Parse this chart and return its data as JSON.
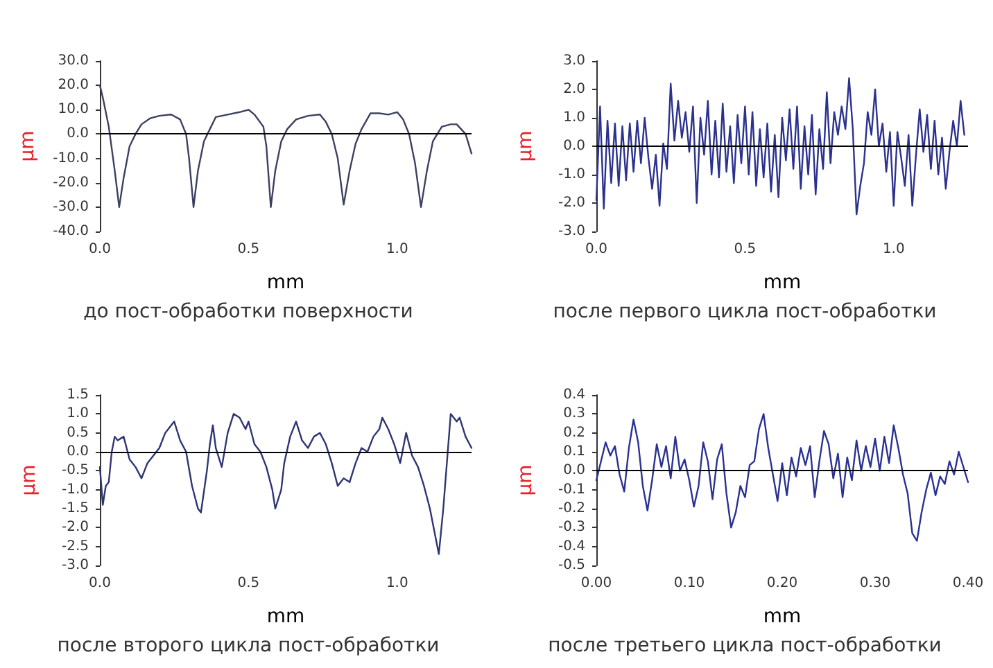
{
  "chart_data": [
    {
      "type": "line",
      "title": "до пост-обработки поверхности",
      "xlabel": "mm",
      "ylabel": "µm",
      "grid": false,
      "marker": "none",
      "line_style": "solid",
      "xlim": [
        0,
        1.25
      ],
      "xticks": [
        {
          "value": 0,
          "label": "0.0"
        },
        {
          "value": 0.5,
          "label": "0.5"
        },
        {
          "value": 1,
          "label": "1.0"
        }
      ],
      "ylim": [
        -40,
        30
      ],
      "yticks": [
        {
          "value": -40,
          "label": "-40.0"
        },
        {
          "value": -30,
          "label": "-30.0"
        },
        {
          "value": -20,
          "label": "-20.0"
        },
        {
          "value": -10,
          "label": "-10.0"
        },
        {
          "value": 0,
          "label": "0.0"
        },
        {
          "value": 10,
          "label": "10.0"
        },
        {
          "value": 20,
          "label": "20.0"
        },
        {
          "value": 30,
          "label": "30.0"
        }
      ],
      "ref_lines": [
        {
          "axis": "y",
          "value": 0,
          "color": "#000000"
        }
      ],
      "series": [
        {
          "color": "#3c4060",
          "x": [
            0,
            0.01,
            0.03,
            0.05,
            0.065,
            0.08,
            0.1,
            0.12,
            0.14,
            0.17,
            0.2,
            0.24,
            0.27,
            0.29,
            0.3,
            0.315,
            0.33,
            0.35,
            0.37,
            0.39,
            0.43,
            0.47,
            0.5,
            0.52,
            0.55,
            0.56,
            0.575,
            0.59,
            0.61,
            0.63,
            0.66,
            0.7,
            0.74,
            0.76,
            0.78,
            0.8,
            0.82,
            0.84,
            0.86,
            0.88,
            0.91,
            0.94,
            0.97,
            1.0,
            1.02,
            1.04,
            1.06,
            1.08,
            1.1,
            1.12,
            1.15,
            1.18,
            1.2,
            1.23,
            1.25
          ],
          "values": [
            20,
            15,
            3,
            -15,
            -30,
            -18,
            -5,
            0,
            4,
            6.5,
            7.5,
            8,
            6,
            0,
            -10,
            -30,
            -15,
            -3,
            2,
            7,
            8,
            9,
            10,
            8,
            3,
            -5,
            -30,
            -15,
            -3,
            2,
            6,
            7.5,
            8,
            5,
            0,
            -10,
            -29,
            -15,
            -4,
            2,
            8.5,
            8.5,
            8,
            9,
            6,
            0,
            -12,
            -30,
            -15,
            -3,
            3,
            4,
            4,
            0,
            -8
          ]
        }
      ]
    },
    {
      "type": "line",
      "title": "после первого цикла пост-обработки",
      "xlabel": "mm",
      "ylabel": "µm",
      "grid": false,
      "marker": "none",
      "line_style": "solid",
      "xlim": [
        0,
        1.25
      ],
      "xticks": [
        {
          "value": 0,
          "label": "0.0"
        },
        {
          "value": 0.5,
          "label": "0.5"
        },
        {
          "value": 1,
          "label": "1.0"
        }
      ],
      "ylim": [
        -3,
        3
      ],
      "yticks": [
        {
          "value": -3,
          "label": "-3.0"
        },
        {
          "value": -2,
          "label": "-2.0"
        },
        {
          "value": -1,
          "label": "-1.0"
        },
        {
          "value": 0,
          "label": "0.0"
        },
        {
          "value": 1,
          "label": "1.0"
        },
        {
          "value": 2,
          "label": "2.0"
        },
        {
          "value": 3,
          "label": "3.0"
        }
      ],
      "ref_lines": [
        {
          "axis": "y",
          "value": 0,
          "color": "#000000"
        }
      ],
      "series": [
        {
          "color": "#2b318f",
          "x": [
            0,
            0.0125,
            0.025,
            0.0375,
            0.05,
            0.0625,
            0.075,
            0.0875,
            0.1,
            0.1125,
            0.125,
            0.1375,
            0.15,
            0.1625,
            0.175,
            0.1875,
            0.2,
            0.2125,
            0.225,
            0.2375,
            0.25,
            0.2625,
            0.275,
            0.2875,
            0.3,
            0.3125,
            0.325,
            0.3375,
            0.35,
            0.3625,
            0.375,
            0.3875,
            0.4,
            0.4125,
            0.425,
            0.4375,
            0.45,
            0.4625,
            0.475,
            0.4875,
            0.5,
            0.5125,
            0.525,
            0.5375,
            0.55,
            0.5625,
            0.575,
            0.5875,
            0.6,
            0.6125,
            0.625,
            0.6375,
            0.65,
            0.6625,
            0.675,
            0.6875,
            0.7,
            0.7125,
            0.725,
            0.7375,
            0.75,
            0.7625,
            0.775,
            0.7875,
            0.8,
            0.8125,
            0.825,
            0.8375,
            0.85,
            0.8625,
            0.875,
            0.8875,
            0.9,
            0.9125,
            0.925,
            0.9375,
            0.95,
            0.9625,
            0.975,
            0.9875,
            1.0,
            1.0125,
            1.025,
            1.0375,
            1.05,
            1.0625,
            1.075,
            1.0875,
            1.1,
            1.1125,
            1.125,
            1.1375,
            1.15,
            1.1625,
            1.175,
            1.1875,
            1.2,
            1.2125,
            1.225,
            1.2375
          ],
          "values": [
            -1.9,
            1.4,
            -2.2,
            0.9,
            -1.3,
            0.8,
            -1.4,
            0.7,
            -1.2,
            0.8,
            -0.9,
            0.9,
            -0.6,
            1.0,
            -0.4,
            -1.5,
            -0.3,
            -2.1,
            0.1,
            -0.8,
            2.2,
            0.2,
            1.6,
            0.3,
            1.2,
            -0.2,
            1.4,
            -2.0,
            1.0,
            -0.3,
            1.6,
            -1.0,
            0.9,
            -1.1,
            1.5,
            -0.9,
            0.7,
            -1.3,
            1.1,
            -0.6,
            1.4,
            -1.0,
            1.2,
            -1.4,
            0.6,
            -1.1,
            0.8,
            -1.6,
            0.4,
            -1.8,
            1.0,
            -0.5,
            1.3,
            -0.8,
            1.4,
            -1.5,
            0.7,
            -1.0,
            1.1,
            -1.7,
            0.6,
            -0.8,
            1.9,
            -0.6,
            1.2,
            0.4,
            1.4,
            0.6,
            2.4,
            0.6,
            -2.4,
            -1.4,
            -0.6,
            1.2,
            0.4,
            2.0,
            0.0,
            0.8,
            -0.9,
            0.5,
            -2.1,
            0.5,
            -0.4,
            -1.4,
            0.4,
            -2.1,
            -0.3,
            1.3,
            -0.2,
            1.1,
            -0.8,
            0.9,
            -1.0,
            0.3,
            -1.5,
            -0.2,
            0.9,
            0.0,
            1.6,
            0.4
          ]
        }
      ]
    },
    {
      "type": "line",
      "title": "после второго цикла пост-обработки",
      "xlabel": "mm",
      "ylabel": "µm",
      "grid": false,
      "marker": "none",
      "line_style": "solid",
      "xlim": [
        0,
        1.25
      ],
      "xticks": [
        {
          "value": 0,
          "label": "0.0"
        },
        {
          "value": 0.5,
          "label": "0.5"
        },
        {
          "value": 1,
          "label": "1.0"
        }
      ],
      "ylim": [
        -3,
        1.5
      ],
      "yticks": [
        {
          "value": -3,
          "label": "-3.0"
        },
        {
          "value": -2.5,
          "label": "-2.5"
        },
        {
          "value": -2,
          "label": "-2.0"
        },
        {
          "value": -1.5,
          "label": "-1.5"
        },
        {
          "value": -1,
          "label": "-1.0"
        },
        {
          "value": -0.5,
          "label": "-0.5"
        },
        {
          "value": 0,
          "label": "0.0"
        },
        {
          "value": 0.5,
          "label": "0.5"
        },
        {
          "value": 1,
          "label": "1.0"
        },
        {
          "value": 1.5,
          "label": "1.5"
        }
      ],
      "ref_lines": [
        {
          "axis": "y",
          "value": 0,
          "color": "#000000"
        }
      ],
      "series": [
        {
          "color": "#2e3572",
          "x": [
            0,
            0.01,
            0.02,
            0.03,
            0.04,
            0.05,
            0.06,
            0.08,
            0.09,
            0.1,
            0.12,
            0.14,
            0.16,
            0.18,
            0.2,
            0.22,
            0.25,
            0.27,
            0.29,
            0.31,
            0.33,
            0.34,
            0.36,
            0.37,
            0.38,
            0.39,
            0.41,
            0.43,
            0.45,
            0.47,
            0.49,
            0.5,
            0.52,
            0.54,
            0.56,
            0.58,
            0.59,
            0.61,
            0.62,
            0.64,
            0.66,
            0.68,
            0.7,
            0.72,
            0.74,
            0.76,
            0.78,
            0.8,
            0.82,
            0.84,
            0.86,
            0.88,
            0.9,
            0.92,
            0.94,
            0.95,
            0.97,
            0.99,
            1.01,
            1.03,
            1.05,
            1.07,
            1.09,
            1.11,
            1.13,
            1.14,
            1.155,
            1.17,
            1.18,
            1.2,
            1.21,
            1.23,
            1.25
          ],
          "values": [
            -0.4,
            -1.4,
            -0.9,
            -0.8,
            0.0,
            0.4,
            0.3,
            0.4,
            0.1,
            -0.2,
            -0.4,
            -0.7,
            -0.3,
            -0.1,
            0.1,
            0.5,
            0.8,
            0.3,
            0.0,
            -0.9,
            -1.5,
            -1.6,
            -0.5,
            0.2,
            0.7,
            0.1,
            -0.4,
            0.5,
            1.0,
            0.9,
            0.6,
            0.8,
            0.2,
            0.0,
            -0.4,
            -1.0,
            -1.5,
            -1.0,
            -0.3,
            0.4,
            0.8,
            0.3,
            0.1,
            0.4,
            0.5,
            0.2,
            -0.3,
            -0.9,
            -0.7,
            -0.8,
            -0.3,
            0.1,
            0.0,
            0.4,
            0.6,
            0.9,
            0.6,
            0.2,
            -0.3,
            0.5,
            -0.1,
            -0.4,
            -0.9,
            -1.5,
            -2.3,
            -2.7,
            -1.5,
            0.0,
            1.0,
            0.8,
            0.9,
            0.4,
            0.1
          ]
        }
      ]
    },
    {
      "type": "line",
      "title": "после третьего цикла пост-обработки",
      "xlabel": "mm",
      "ylabel": "µm",
      "grid": false,
      "marker": "none",
      "line_style": "solid",
      "xlim": [
        0,
        0.4
      ],
      "xticks": [
        {
          "value": 0,
          "label": "0.00"
        },
        {
          "value": 0.1,
          "label": "0.10"
        },
        {
          "value": 0.2,
          "label": "0.20"
        },
        {
          "value": 0.3,
          "label": "0.30"
        },
        {
          "value": 0.4,
          "label": "0.40"
        }
      ],
      "ylim": [
        -0.5,
        0.4
      ],
      "yticks": [
        {
          "value": -0.5,
          "label": "-0.5"
        },
        {
          "value": -0.4,
          "label": "-0.4"
        },
        {
          "value": -0.3,
          "label": "-0.3"
        },
        {
          "value": -0.2,
          "label": "-0.2"
        },
        {
          "value": -0.1,
          "label": "-0.1"
        },
        {
          "value": 0,
          "label": "0.0"
        },
        {
          "value": 0.1,
          "label": "0.1"
        },
        {
          "value": 0.2,
          "label": "0.2"
        },
        {
          "value": 0.3,
          "label": "0.3"
        },
        {
          "value": 0.4,
          "label": "0.4"
        }
      ],
      "ref_lines": [
        {
          "axis": "y",
          "value": 0,
          "color": "#000000"
        }
      ],
      "series": [
        {
          "color": "#2a3192",
          "x": [
            0,
            0.005,
            0.01,
            0.015,
            0.02,
            0.025,
            0.03,
            0.035,
            0.04,
            0.045,
            0.05,
            0.055,
            0.06,
            0.065,
            0.07,
            0.075,
            0.08,
            0.085,
            0.09,
            0.095,
            0.1,
            0.105,
            0.11,
            0.115,
            0.12,
            0.125,
            0.13,
            0.135,
            0.14,
            0.145,
            0.15,
            0.155,
            0.16,
            0.165,
            0.17,
            0.175,
            0.18,
            0.185,
            0.19,
            0.195,
            0.2,
            0.205,
            0.21,
            0.215,
            0.22,
            0.225,
            0.23,
            0.235,
            0.24,
            0.245,
            0.25,
            0.255,
            0.26,
            0.265,
            0.27,
            0.275,
            0.28,
            0.285,
            0.29,
            0.295,
            0.3,
            0.305,
            0.31,
            0.315,
            0.32,
            0.325,
            0.33,
            0.335,
            0.34,
            0.345,
            0.35,
            0.355,
            0.36,
            0.365,
            0.37,
            0.375,
            0.38,
            0.385,
            0.39,
            0.395,
            0.4
          ],
          "values": [
            -0.05,
            0.05,
            0.15,
            0.08,
            0.13,
            -0.02,
            -0.11,
            0.12,
            0.27,
            0.15,
            -0.08,
            -0.21,
            -0.05,
            0.14,
            0.02,
            0.13,
            -0.04,
            0.18,
            0.0,
            0.06,
            -0.05,
            -0.19,
            -0.08,
            0.15,
            0.05,
            -0.15,
            0.06,
            0.14,
            -0.12,
            -0.3,
            -0.22,
            -0.08,
            -0.14,
            0.03,
            0.05,
            0.22,
            0.3,
            0.12,
            -0.02,
            -0.16,
            0.04,
            -0.13,
            0.07,
            -0.03,
            0.12,
            0.03,
            0.13,
            -0.14,
            0.05,
            0.21,
            0.14,
            -0.04,
            0.09,
            -0.14,
            0.07,
            -0.05,
            0.16,
            0.0,
            0.13,
            0.02,
            0.17,
            0.0,
            0.18,
            0.04,
            0.24,
            0.12,
            -0.02,
            -0.12,
            -0.33,
            -0.37,
            -0.22,
            -0.1,
            -0.01,
            -0.13,
            -0.03,
            -0.07,
            0.05,
            -0.02,
            0.1,
            0.02,
            -0.06
          ]
        }
      ]
    }
  ]
}
